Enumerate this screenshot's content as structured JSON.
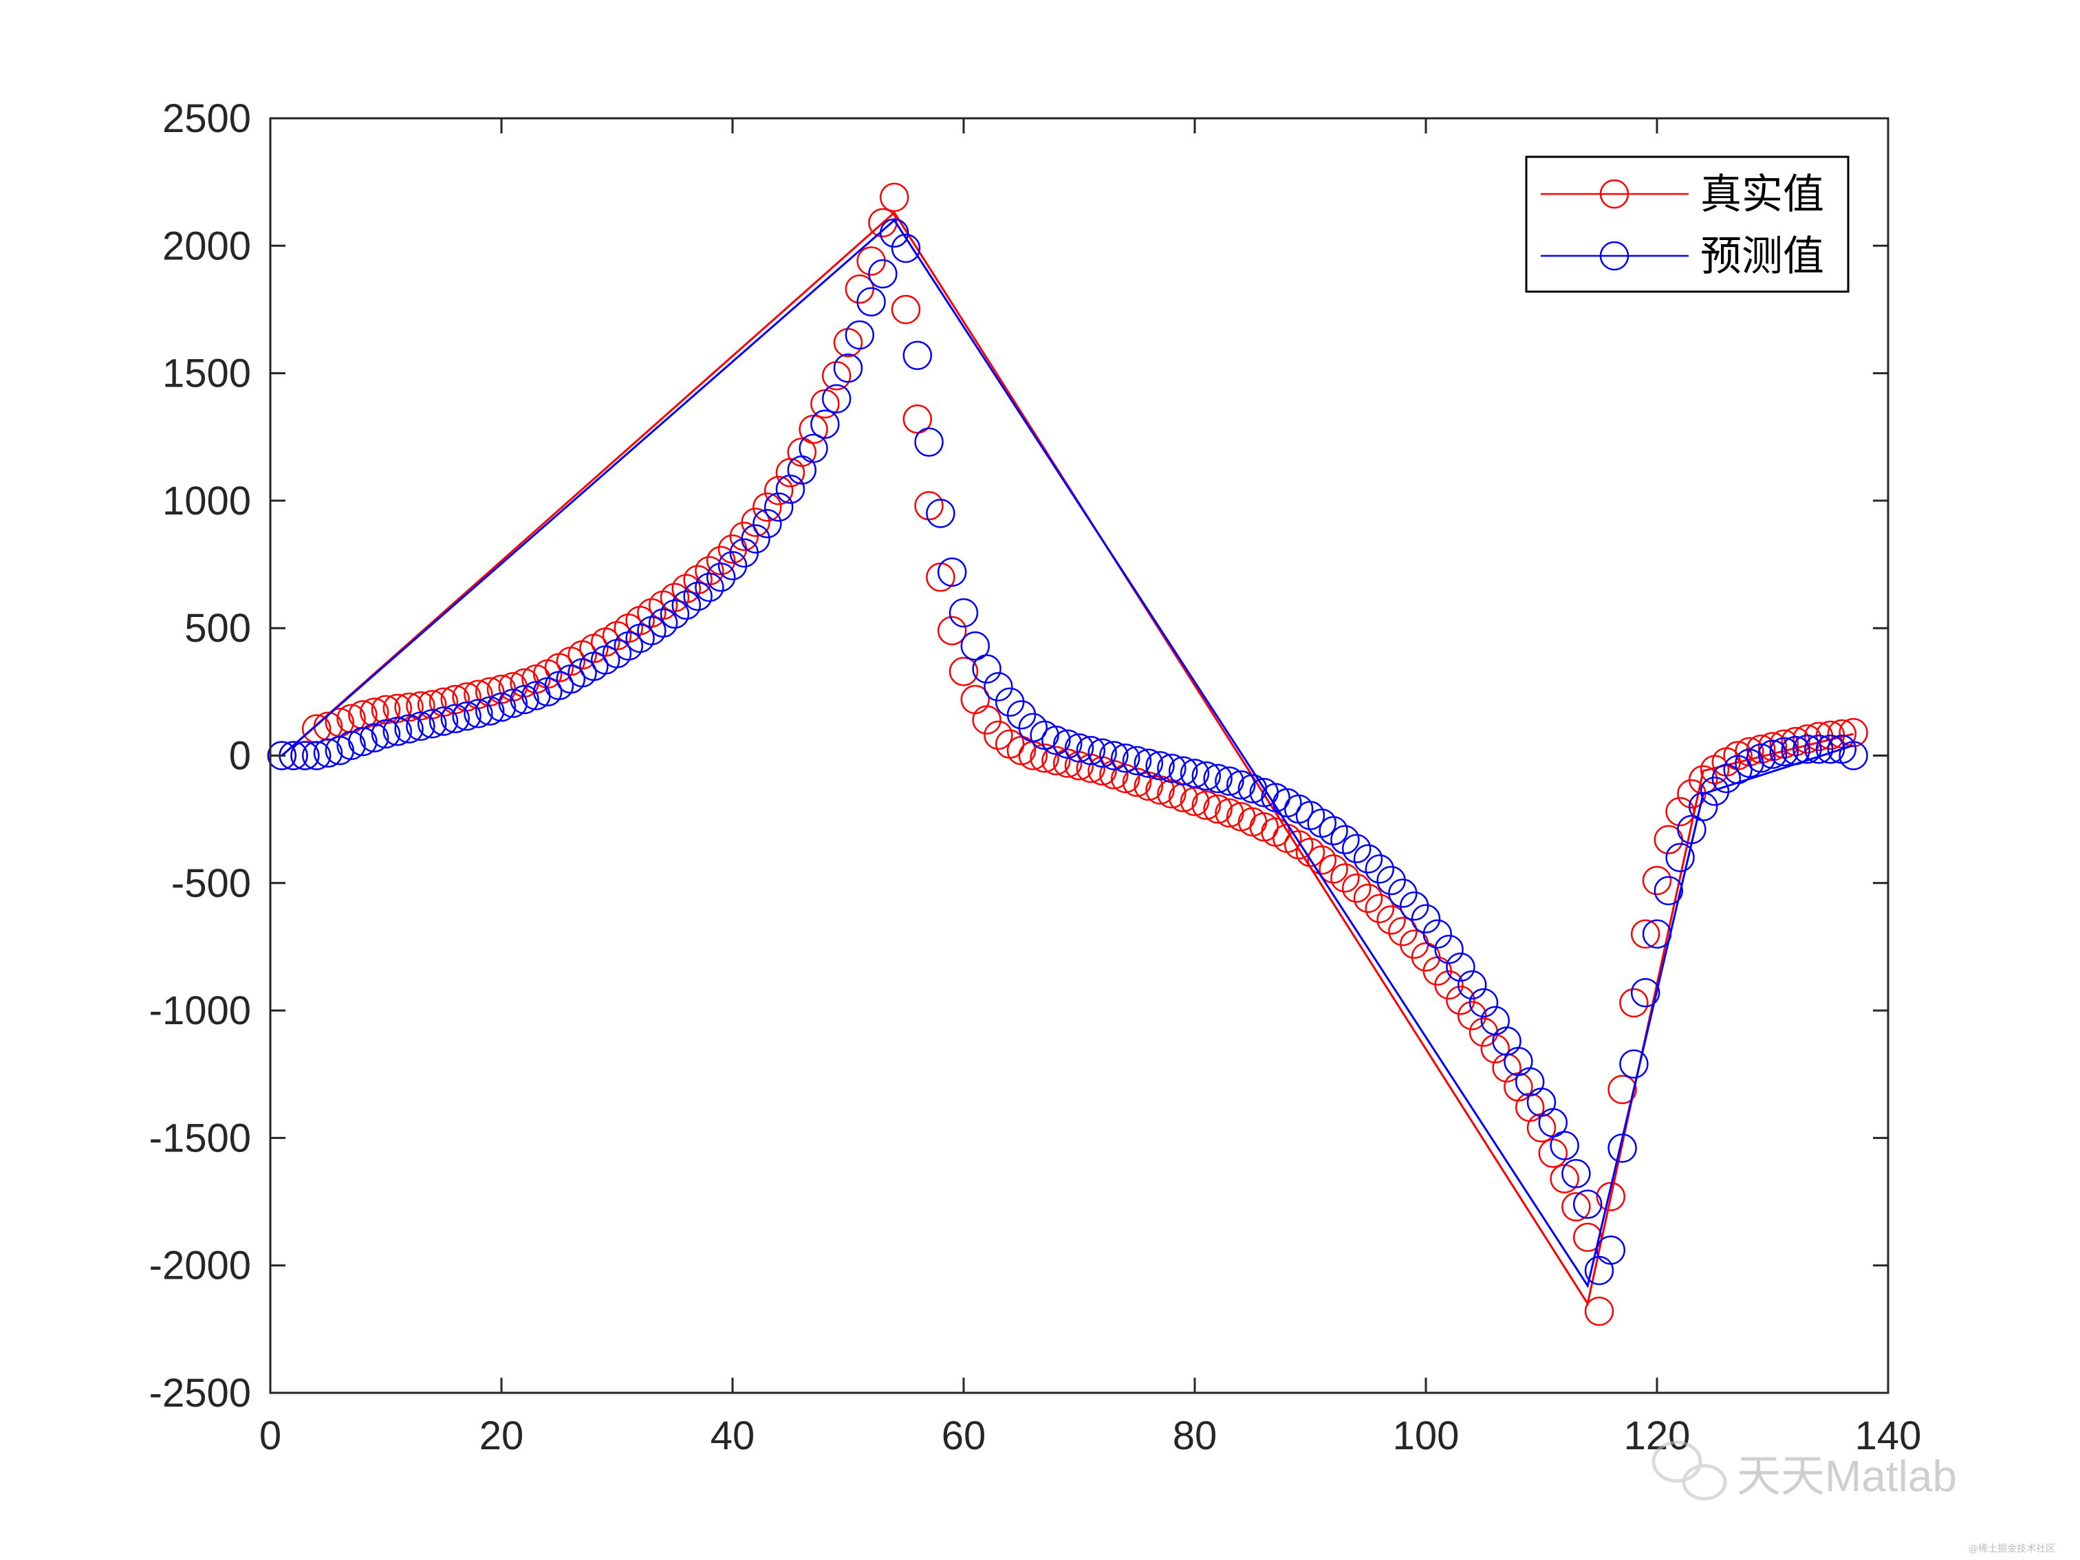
{
  "chart_data": {
    "type": "line",
    "title": "",
    "xlabel": "",
    "ylabel": "",
    "xlim": [
      0,
      140
    ],
    "ylim": [
      -2500,
      2500
    ],
    "xticks": [
      0,
      20,
      40,
      60,
      80,
      100,
      120,
      140
    ],
    "yticks": [
      -2500,
      -2000,
      -1500,
      -1000,
      -500,
      0,
      500,
      1000,
      1500,
      2000,
      2500
    ],
    "grid": false,
    "legend_position": "top-right",
    "marker": "circle",
    "series": [
      {
        "name": "真实值",
        "color": "#ff0000",
        "x": [
          1,
          2,
          3,
          4,
          5,
          6,
          7,
          8,
          9,
          10,
          11,
          12,
          13,
          14,
          15,
          16,
          17,
          18,
          19,
          20,
          21,
          22,
          23,
          24,
          25,
          26,
          27,
          28,
          29,
          30,
          31,
          32,
          33,
          34,
          35,
          36,
          37,
          38,
          39,
          40,
          41,
          42,
          43,
          44,
          45,
          46,
          47,
          48,
          49,
          50,
          51,
          52,
          53,
          54,
          55,
          56,
          57,
          58,
          59,
          60,
          61,
          62,
          63,
          64,
          65,
          66,
          67,
          68,
          69,
          70,
          71,
          72,
          73,
          74,
          75,
          76,
          77,
          78,
          79,
          80,
          81,
          82,
          83,
          84,
          85,
          86,
          87,
          88,
          89,
          90,
          91,
          92,
          93,
          94,
          95,
          96,
          97,
          98,
          99,
          100,
          101,
          102,
          103,
          104,
          105,
          106,
          107,
          108,
          109,
          110,
          111,
          112,
          113,
          114,
          115,
          116,
          117,
          118,
          119,
          120,
          121,
          122,
          123,
          124,
          125,
          126,
          127,
          128,
          129,
          130,
          131,
          132,
          133,
          134,
          135,
          136,
          137
        ],
        "values": [
          0,
          0,
          0,
          105,
          115,
          130,
          145,
          160,
          170,
          180,
          185,
          190,
          195,
          200,
          210,
          220,
          230,
          240,
          250,
          260,
          270,
          285,
          300,
          320,
          345,
          370,
          395,
          420,
          445,
          470,
          500,
          530,
          560,
          590,
          620,
          655,
          690,
          725,
          765,
          810,
          860,
          915,
          975,
          1040,
          1110,
          1190,
          1280,
          1380,
          1490,
          1620,
          1830,
          1940,
          2090,
          2190,
          1750,
          1320,
          980,
          700,
          490,
          330,
          220,
          140,
          80,
          45,
          20,
          0,
          -10,
          -20,
          -30,
          -40,
          -50,
          -60,
          -75,
          -90,
          -105,
          -120,
          -135,
          -150,
          -165,
          -180,
          -195,
          -210,
          -225,
          -240,
          -260,
          -280,
          -300,
          -325,
          -350,
          -380,
          -410,
          -445,
          -480,
          -520,
          -560,
          -600,
          -645,
          -690,
          -740,
          -790,
          -845,
          -900,
          -960,
          -1020,
          -1085,
          -1150,
          -1225,
          -1300,
          -1380,
          -1460,
          -1560,
          -1660,
          -1770,
          -1890,
          -2180,
          -1730,
          -1310,
          -970,
          -700,
          -490,
          -330,
          -220,
          -150,
          -95,
          -55,
          -25,
          0,
          15,
          25,
          35,
          45,
          55,
          65,
          75,
          80,
          85,
          90
        ],
        "line_points": [
          [
            1,
            0
          ],
          [
            54,
            2130
          ],
          [
            114,
            -2150
          ],
          [
            124,
            -60
          ],
          [
            137,
            85
          ]
        ]
      },
      {
        "name": "预测值",
        "color": "#0000ff",
        "x": [
          1,
          2,
          3,
          4,
          5,
          6,
          7,
          8,
          9,
          10,
          11,
          12,
          13,
          14,
          15,
          16,
          17,
          18,
          19,
          20,
          21,
          22,
          23,
          24,
          25,
          26,
          27,
          28,
          29,
          30,
          31,
          32,
          33,
          34,
          35,
          36,
          37,
          38,
          39,
          40,
          41,
          42,
          43,
          44,
          45,
          46,
          47,
          48,
          49,
          50,
          51,
          52,
          53,
          54,
          55,
          56,
          57,
          58,
          59,
          60,
          61,
          62,
          63,
          64,
          65,
          66,
          67,
          68,
          69,
          70,
          71,
          72,
          73,
          74,
          75,
          76,
          77,
          78,
          79,
          80,
          81,
          82,
          83,
          84,
          85,
          86,
          87,
          88,
          89,
          90,
          91,
          92,
          93,
          94,
          95,
          96,
          97,
          98,
          99,
          100,
          101,
          102,
          103,
          104,
          105,
          106,
          107,
          108,
          109,
          110,
          111,
          112,
          113,
          114,
          115,
          116,
          117,
          118,
          119,
          120,
          121,
          122,
          123,
          124,
          125,
          126,
          127,
          128,
          129,
          130,
          131,
          132,
          133,
          134,
          135,
          136,
          137
        ],
        "values": [
          0,
          0,
          0,
          0,
          10,
          20,
          40,
          55,
          70,
          85,
          95,
          105,
          115,
          125,
          135,
          145,
          155,
          165,
          175,
          190,
          205,
          220,
          235,
          250,
          275,
          300,
          325,
          350,
          375,
          400,
          430,
          460,
          490,
          520,
          555,
          590,
          625,
          660,
          700,
          745,
          795,
          850,
          910,
          975,
          1045,
          1120,
          1205,
          1300,
          1400,
          1520,
          1650,
          1780,
          1890,
          2050,
          1990,
          1570,
          1230,
          950,
          720,
          560,
          430,
          340,
          270,
          210,
          160,
          110,
          80,
          60,
          45,
          30,
          20,
          10,
          0,
          -10,
          -20,
          -30,
          -40,
          -50,
          -60,
          -70,
          -80,
          -90,
          -100,
          -115,
          -130,
          -145,
          -165,
          -185,
          -210,
          -235,
          -265,
          -295,
          -330,
          -365,
          -405,
          -445,
          -490,
          -540,
          -590,
          -640,
          -700,
          -760,
          -830,
          -900,
          -970,
          -1040,
          -1120,
          -1200,
          -1280,
          -1360,
          -1440,
          -1530,
          -1640,
          -1760,
          -2020,
          -1940,
          -1540,
          -1210,
          -930,
          -700,
          -530,
          -400,
          -290,
          -200,
          -140,
          -90,
          -55,
          -30,
          -10,
          5,
          15,
          20,
          25,
          25,
          25,
          25,
          0
        ],
        "line_points": [
          [
            1,
            0
          ],
          [
            54,
            2100
          ],
          [
            114,
            -2080
          ],
          [
            124,
            -150
          ],
          [
            137,
            40
          ]
        ]
      }
    ],
    "watermark": "天天Matlab",
    "watermark_small": "@稀土掘金技术社区"
  }
}
